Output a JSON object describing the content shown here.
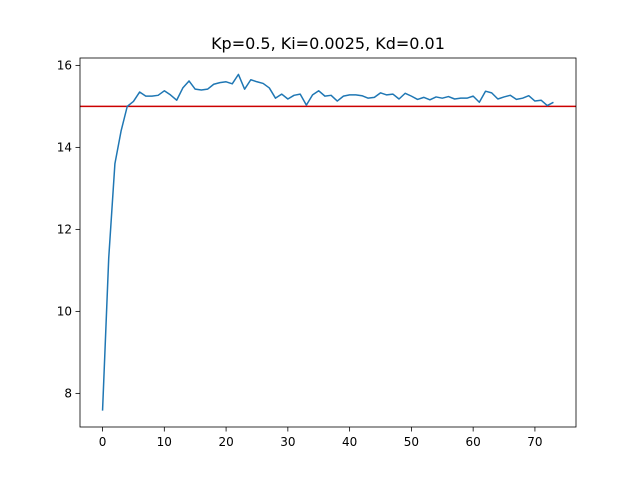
{
  "chart_data": {
    "type": "line",
    "title": "Kp=0.5, Ki=0.0025, Kd=0.01",
    "xlabel": "",
    "ylabel": "",
    "xlim": [
      -3.65,
      76.65
    ],
    "ylim": [
      7.18,
      16.18
    ],
    "x_ticks": [
      0,
      10,
      20,
      30,
      40,
      50,
      60,
      70
    ],
    "y_ticks": [
      8,
      10,
      12,
      14,
      16
    ],
    "grid": false,
    "legend": "none",
    "series": [
      {
        "color": "#1f77b4",
        "x": [
          0,
          1,
          2,
          3,
          4,
          5,
          6,
          7,
          8,
          9,
          10,
          11,
          12,
          13,
          14,
          15,
          16,
          17,
          18,
          19,
          20,
          21,
          22,
          23,
          24,
          25,
          26,
          27,
          28,
          29,
          30,
          31,
          32,
          33,
          34,
          35,
          36,
          37,
          38,
          39,
          40,
          41,
          42,
          43,
          44,
          45,
          46,
          47,
          48,
          49,
          50,
          51,
          52,
          53,
          54,
          55,
          56,
          57,
          58,
          59,
          60,
          61,
          62,
          63,
          64,
          65,
          66,
          67,
          68,
          69,
          70,
          71,
          72,
          73
        ],
        "values": [
          7.58,
          11.3,
          13.6,
          14.4,
          15.0,
          15.12,
          15.35,
          15.25,
          15.25,
          15.27,
          15.38,
          15.28,
          15.15,
          15.45,
          15.62,
          15.42,
          15.4,
          15.42,
          15.54,
          15.58,
          15.6,
          15.55,
          15.78,
          15.42,
          15.65,
          15.6,
          15.56,
          15.45,
          15.2,
          15.3,
          15.18,
          15.27,
          15.3,
          15.03,
          15.28,
          15.38,
          15.25,
          15.27,
          15.13,
          15.25,
          15.28,
          15.28,
          15.26,
          15.2,
          15.22,
          15.33,
          15.28,
          15.3,
          15.18,
          15.32,
          15.25,
          15.17,
          15.22,
          15.16,
          15.23,
          15.2,
          15.24,
          15.18,
          15.2,
          15.2,
          15.25,
          15.1,
          15.37,
          15.33,
          15.18,
          15.23,
          15.27,
          15.17,
          15.2,
          15.26,
          15.13,
          15.15,
          15.02,
          15.1
        ]
      }
    ],
    "reference_line": {
      "y": 15.0,
      "color": "#cc0000"
    }
  }
}
